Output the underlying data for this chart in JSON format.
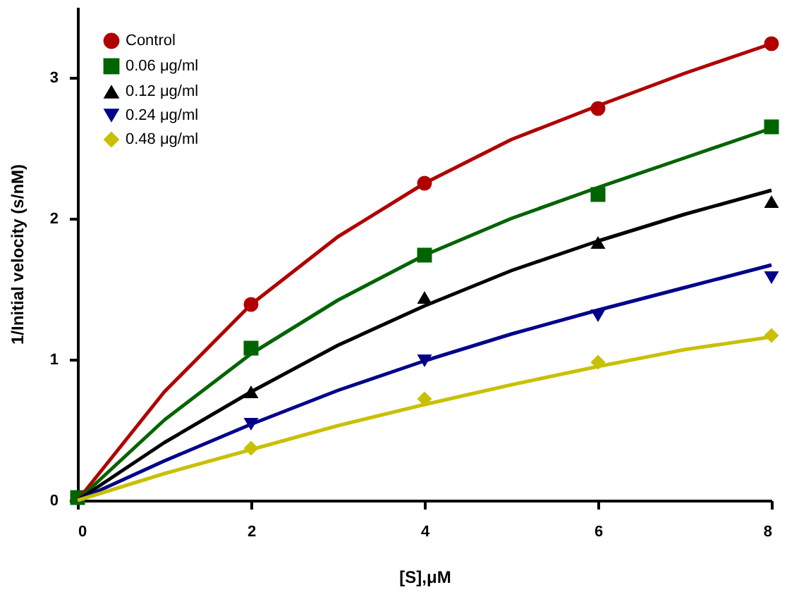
{
  "chart_data": {
    "type": "scatter",
    "xlabel": "[S],μM",
    "ylabel": "1/Initial velocity (s/nM)",
    "x": [
      0,
      2,
      4,
      6,
      8
    ],
    "xlim": [
      0,
      8
    ],
    "xticks": [
      0,
      2,
      4,
      6,
      8
    ],
    "ylim": [
      0,
      3.5
    ],
    "yticks": [
      0,
      1,
      2,
      3
    ],
    "grid": false,
    "legend": "top left",
    "series": [
      {
        "name": "Control",
        "color": "#b00000",
        "marker": "circle",
        "values": [
          null,
          1.39,
          2.25,
          2.78,
          3.24
        ]
      },
      {
        "name": "0.06 μg/ml",
        "color": "#006400",
        "marker": "square",
        "values": [
          0.02,
          1.08,
          1.74,
          2.17,
          2.65
        ]
      },
      {
        "name": "0.12 μg/ml",
        "color": "#000000",
        "marker": "triangle",
        "values": [
          null,
          0.77,
          1.44,
          1.83,
          2.12
        ]
      },
      {
        "name": "0.24 μg/ml",
        "color": "#00008b",
        "marker": "triangle-down",
        "values": [
          null,
          0.54,
          0.99,
          1.31,
          1.58
        ]
      },
      {
        "name": "0.48 μg/ml",
        "color": "#c8c000",
        "marker": "diamond",
        "values": [
          null,
          0.37,
          0.72,
          0.98,
          1.17
        ]
      },
      {
        "type": "line",
        "color": "#b00000",
        "x": [
          0,
          1,
          2,
          3,
          4,
          5,
          6,
          7,
          8
        ],
        "values": [
          0,
          0.77,
          1.39,
          1.87,
          2.25,
          2.56,
          2.8,
          3.03,
          3.24
        ]
      },
      {
        "type": "line",
        "color": "#006400",
        "x": [
          0,
          1,
          2,
          3,
          4,
          5,
          6,
          7,
          8
        ],
        "values": [
          0,
          0.57,
          1.04,
          1.42,
          1.74,
          2.0,
          2.22,
          2.43,
          2.64
        ]
      },
      {
        "type": "line",
        "color": "#000000",
        "x": [
          0,
          1,
          2,
          3,
          4,
          5,
          6,
          7,
          8
        ],
        "values": [
          0,
          0.41,
          0.77,
          1.1,
          1.38,
          1.63,
          1.84,
          2.03,
          2.2
        ]
      },
      {
        "type": "line",
        "color": "#00008b",
        "x": [
          0,
          1,
          2,
          3,
          4,
          5,
          6,
          7,
          8
        ],
        "values": [
          0,
          0.28,
          0.54,
          0.78,
          0.99,
          1.18,
          1.35,
          1.51,
          1.67
        ]
      },
      {
        "type": "line",
        "color": "#c8c000",
        "x": [
          0,
          1,
          2,
          3,
          4,
          5,
          6,
          7,
          8
        ],
        "values": [
          0,
          0.19,
          0.36,
          0.53,
          0.68,
          0.82,
          0.95,
          1.07,
          1.16
        ]
      }
    ]
  }
}
